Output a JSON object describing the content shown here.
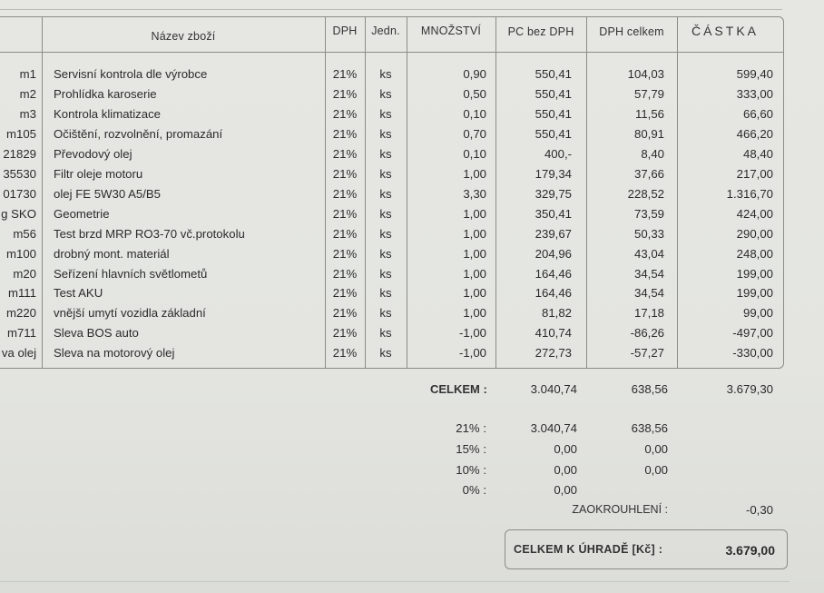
{
  "table": {
    "headers": {
      "nazev": "Název zboží",
      "dph": "DPH",
      "jedn": "Jedn.",
      "mnozstvi": "MNOŽSTVÍ",
      "pc_bez_dph": "PC bez DPH",
      "dph_celkem": "DPH celkem",
      "castka": "ČÁSTKA"
    },
    "rows": [
      {
        "code": "m1",
        "name": "Servisní kontrola dle výrobce",
        "dph": "21%",
        "unit": "ks",
        "qty": "0,90",
        "price": "550,41",
        "vat": "104,03",
        "amount": "599,40"
      },
      {
        "code": "m2",
        "name": "Prohlídka karoserie",
        "dph": "21%",
        "unit": "ks",
        "qty": "0,50",
        "price": "550,41",
        "vat": "57,79",
        "amount": "333,00"
      },
      {
        "code": "m3",
        "name": "Kontrola klimatizace",
        "dph": "21%",
        "unit": "ks",
        "qty": "0,10",
        "price": "550,41",
        "vat": "11,56",
        "amount": "66,60"
      },
      {
        "code": "m105",
        "name": "Očištění, rozvolnění, promazání",
        "dph": "21%",
        "unit": "ks",
        "qty": "0,70",
        "price": "550,41",
        "vat": "80,91",
        "amount": "466,20"
      },
      {
        "code": "21829",
        "name": "Převodový olej",
        "dph": "21%",
        "unit": "ks",
        "qty": "0,10",
        "price": "400,-",
        "vat": "8,40",
        "amount": "48,40"
      },
      {
        "code": "35530",
        "name": "Filtr oleje motoru",
        "dph": "21%",
        "unit": "ks",
        "qty": "1,00",
        "price": "179,34",
        "vat": "37,66",
        "amount": "217,00"
      },
      {
        "code": "01730",
        "name": "olej FE 5W30 A5/B5",
        "dph": "21%",
        "unit": "ks",
        "qty": "3,30",
        "price": "329,75",
        "vat": "228,52",
        "amount": "1.316,70"
      },
      {
        "code": "g SKO",
        "name": "Geometrie",
        "dph": "21%",
        "unit": "ks",
        "qty": "1,00",
        "price": "350,41",
        "vat": "73,59",
        "amount": "424,00"
      },
      {
        "code": "m56",
        "name": "Test brzd MRP RO3-70 vč.protokolu",
        "dph": "21%",
        "unit": "ks",
        "qty": "1,00",
        "price": "239,67",
        "vat": "50,33",
        "amount": "290,00"
      },
      {
        "code": "m100",
        "name": "drobný mont. materiál",
        "dph": "21%",
        "unit": "ks",
        "qty": "1,00",
        "price": "204,96",
        "vat": "43,04",
        "amount": "248,00"
      },
      {
        "code": "m20",
        "name": "Seřízení hlavních světlometů",
        "dph": "21%",
        "unit": "ks",
        "qty": "1,00",
        "price": "164,46",
        "vat": "34,54",
        "amount": "199,00"
      },
      {
        "code": "m111",
        "name": "Test AKU",
        "dph": "21%",
        "unit": "ks",
        "qty": "1,00",
        "price": "164,46",
        "vat": "34,54",
        "amount": "199,00"
      },
      {
        "code": "m220",
        "name": "vnější umytí vozidla základní",
        "dph": "21%",
        "unit": "ks",
        "qty": "1,00",
        "price": "81,82",
        "vat": "17,18",
        "amount": "99,00"
      },
      {
        "code": "m711",
        "name": "Sleva BOS auto",
        "dph": "21%",
        "unit": "ks",
        "qty": "-1,00",
        "price": "410,74",
        "vat": "-86,26",
        "amount": "-497,00"
      },
      {
        "code": "va olej",
        "name": "Sleva na motorový olej",
        "dph": "21%",
        "unit": "ks",
        "qty": "-1,00",
        "price": "272,73",
        "vat": "-57,27",
        "amount": "-330,00"
      }
    ]
  },
  "summary": {
    "celkem_label": "CELKEM :",
    "celkem_base": "3.040,74",
    "celkem_vat": "638,56",
    "celkem_amount": "3.679,30",
    "rates": [
      {
        "label": "21% :",
        "base": "3.040,74",
        "vat": "638,56"
      },
      {
        "label": "15% :",
        "base": "0,00",
        "vat": "0,00"
      },
      {
        "label": "10% :",
        "base": "0,00",
        "vat": "0,00"
      },
      {
        "label": "0% :",
        "base": "0,00",
        "vat": ""
      }
    ],
    "rounding_label": "ZAOKROUHLENÍ :",
    "rounding_value": "-0,30",
    "total_label": "CELKEM K ÚHRADĚ [Kč] :",
    "total_value": "3.679,00"
  }
}
